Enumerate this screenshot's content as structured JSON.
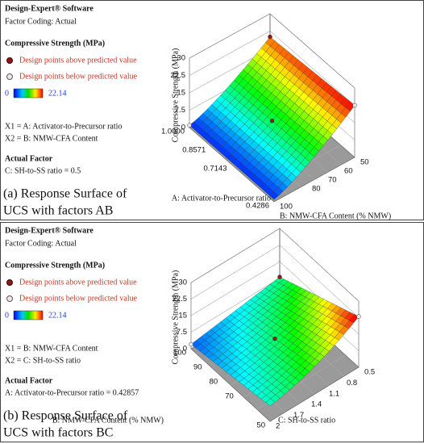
{
  "panels": [
    {
      "software": "Design-Expert® Software",
      "coding": "Factor Coding: Actual",
      "response": "Compressive Strength (MPa)",
      "legend": [
        "Design points above predicted value",
        "Design points below predicted value"
      ],
      "colorbar": [
        "0",
        "22.14"
      ],
      "factors": [
        "X1 = A: Activator-to-Precursor ratio",
        "X2 = B: NMW-CFA Content"
      ],
      "actual_factor_title": "Actual Factor",
      "actual_factor": "C: SH-to-SS ratio = 0.5",
      "caption": [
        "(a) Response Surface of",
        "UCS with factors AB"
      ],
      "z_axis": {
        "label": "Compressive Strength (MPa)",
        "ticks": [
          "0",
          "7.5",
          "15",
          "22.5",
          "30"
        ]
      },
      "u_axis": {
        "label": "A: Activator-to-Precursor ratio",
        "ticks": [
          "1.0000",
          "0.8571",
          "0.7143",
          "0.4286"
        ]
      },
      "v_axis": {
        "label": "B: NMW-CFA Content (% NMW)",
        "ticks": [
          "100",
          "80",
          "70",
          "60",
          "50"
        ]
      }
    },
    {
      "software": "Design-Expert® Software",
      "coding": "Factor Coding: Actual",
      "response": "Compressive Strength (MPa)",
      "legend": [
        "Design points above predicted value",
        "Design points below predicted value"
      ],
      "colorbar": [
        "0",
        "22.14"
      ],
      "factors": [
        "X1 = B: NMW-CFA Content",
        "X2 = C: SH-to-SS ratio"
      ],
      "actual_factor_title": "Actual Factor",
      "actual_factor": "A: Activator-to-Precursor ratio = 0.42857",
      "caption": [
        "(b) Response Surface of",
        "UCS with factors BC"
      ],
      "z_axis": {
        "label": "Compressive Strength (MPa)",
        "ticks": [
          "0",
          "7.5",
          "15",
          "22.5",
          "30"
        ]
      },
      "u_axis": {
        "label": "B: NMW-CFA Content (% NMW)",
        "ticks": [
          "100",
          "90",
          "80",
          "70",
          "50"
        ]
      },
      "v_axis": {
        "label": "C: SH-to-SS ratio",
        "ticks": [
          "2",
          "1.7",
          "1.4",
          "1.1",
          "0.8",
          "0.5"
        ]
      }
    }
  ]
}
